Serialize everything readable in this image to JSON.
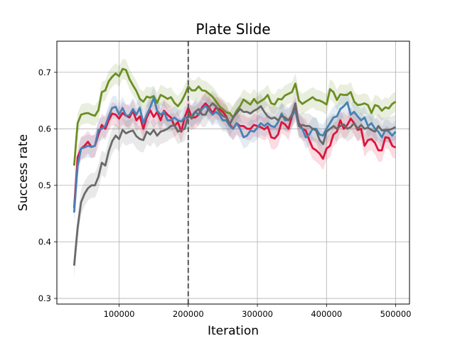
{
  "chart_data": {
    "type": "line",
    "title": "Plate Slide",
    "xlabel": "Iteration",
    "ylabel": "Success rate",
    "xlim": [
      10000,
      520000
    ],
    "ylim": [
      0.29,
      0.755
    ],
    "xticks": [
      100000,
      200000,
      300000,
      400000,
      500000
    ],
    "xtick_labels": [
      "100000",
      "200000",
      "300000",
      "400000",
      "500000"
    ],
    "yticks": [
      0.3,
      0.4,
      0.5,
      0.6,
      0.7
    ],
    "ytick_labels": [
      "0.3",
      "0.4",
      "0.5",
      "0.6",
      "0.7"
    ],
    "grid": true,
    "vline": {
      "x": 200000,
      "style": "dashed",
      "color": "#555555"
    },
    "x": [
      35000,
      40000,
      45000,
      50000,
      55000,
      60000,
      65000,
      70000,
      75000,
      80000,
      85000,
      90000,
      95000,
      100000,
      105000,
      110000,
      115000,
      120000,
      125000,
      130000,
      135000,
      140000,
      145000,
      150000,
      155000,
      160000,
      165000,
      170000,
      175000,
      180000,
      185000,
      190000,
      195000,
      200000,
      205000,
      210000,
      215000,
      220000,
      225000,
      230000,
      235000,
      240000,
      245000,
      250000,
      255000,
      260000,
      265000,
      270000,
      275000,
      280000,
      285000,
      290000,
      295000,
      300000,
      305000,
      310000,
      315000,
      320000,
      325000,
      330000,
      335000,
      340000,
      345000,
      350000,
      355000,
      360000,
      365000,
      370000,
      375000,
      380000,
      385000,
      390000,
      395000,
      400000,
      405000,
      410000,
      415000,
      420000,
      425000,
      430000,
      435000,
      440000,
      445000,
      450000,
      455000,
      460000,
      465000,
      470000,
      475000,
      480000,
      485000,
      490000,
      495000,
      500000
    ],
    "series": [
      {
        "color": "#6b8e23",
        "band": 0.018,
        "values": [
          0.535,
          0.61,
          0.625,
          0.627,
          0.628,
          0.625,
          0.623,
          0.633,
          0.665,
          0.668,
          0.684,
          0.692,
          0.698,
          0.693,
          0.706,
          0.704,
          0.688,
          0.677,
          0.667,
          0.653,
          0.648,
          0.657,
          0.655,
          0.658,
          0.646,
          0.66,
          0.657,
          0.653,
          0.656,
          0.646,
          0.64,
          0.648,
          0.66,
          0.675,
          0.668,
          0.668,
          0.675,
          0.668,
          0.667,
          0.662,
          0.657,
          0.649,
          0.64,
          0.635,
          0.629,
          0.628,
          0.62,
          0.632,
          0.64,
          0.652,
          0.647,
          0.643,
          0.653,
          0.645,
          0.649,
          0.653,
          0.66,
          0.645,
          0.643,
          0.653,
          0.652,
          0.659,
          0.662,
          0.665,
          0.68,
          0.65,
          0.644,
          0.648,
          0.652,
          0.656,
          0.651,
          0.65,
          0.647,
          0.643,
          0.67,
          0.665,
          0.651,
          0.661,
          0.66,
          0.66,
          0.665,
          0.648,
          0.642,
          0.643,
          0.645,
          0.642,
          0.628,
          0.642,
          0.64,
          0.632,
          0.638,
          0.636,
          0.644,
          0.648
        ]
      },
      {
        "color": "#dc143c",
        "band": 0.02,
        "values": [
          0.46,
          0.55,
          0.565,
          0.57,
          0.577,
          0.568,
          0.57,
          0.59,
          0.607,
          0.6,
          0.615,
          0.627,
          0.625,
          0.618,
          0.628,
          0.623,
          0.62,
          0.632,
          0.615,
          0.622,
          0.6,
          0.62,
          0.633,
          0.621,
          0.63,
          0.615,
          0.632,
          0.625,
          0.62,
          0.605,
          0.612,
          0.595,
          0.621,
          0.637,
          0.62,
          0.62,
          0.625,
          0.638,
          0.645,
          0.638,
          0.628,
          0.637,
          0.635,
          0.63,
          0.622,
          0.608,
          0.6,
          0.61,
          0.605,
          0.605,
          0.6,
          0.6,
          0.607,
          0.605,
          0.603,
          0.599,
          0.604,
          0.585,
          0.583,
          0.59,
          0.612,
          0.608,
          0.6,
          0.622,
          0.637,
          0.61,
          0.6,
          0.597,
          0.58,
          0.566,
          0.562,
          0.556,
          0.547,
          0.565,
          0.57,
          0.59,
          0.595,
          0.615,
          0.6,
          0.607,
          0.618,
          0.61,
          0.598,
          0.6,
          0.57,
          0.58,
          0.582,
          0.575,
          0.562,
          0.562,
          0.585,
          0.584,
          0.57,
          0.567
        ]
      },
      {
        "color": "#4682b4",
        "band": 0.02,
        "values": [
          0.452,
          0.535,
          0.565,
          0.567,
          0.57,
          0.568,
          0.57,
          0.598,
          0.6,
          0.605,
          0.622,
          0.637,
          0.639,
          0.625,
          0.637,
          0.623,
          0.624,
          0.635,
          0.625,
          0.637,
          0.61,
          0.625,
          0.638,
          0.655,
          0.632,
          0.625,
          0.63,
          0.615,
          0.615,
          0.62,
          0.615,
          0.613,
          0.62,
          0.62,
          0.623,
          0.63,
          0.625,
          0.635,
          0.641,
          0.633,
          0.625,
          0.63,
          0.625,
          0.615,
          0.615,
          0.605,
          0.6,
          0.61,
          0.6,
          0.585,
          0.588,
          0.597,
          0.595,
          0.602,
          0.61,
          0.605,
          0.61,
          0.605,
          0.603,
          0.612,
          0.627,
          0.615,
          0.616,
          0.623,
          0.632,
          0.605,
          0.6,
          0.585,
          0.59,
          0.6,
          0.6,
          0.59,
          0.588,
          0.6,
          0.61,
          0.62,
          0.622,
          0.635,
          0.64,
          0.647,
          0.625,
          0.63,
          0.622,
          0.615,
          0.62,
          0.605,
          0.61,
          0.6,
          0.595,
          0.585,
          0.598,
          0.595,
          0.588,
          0.595
        ]
      },
      {
        "color": "#696969",
        "band": 0.022,
        "values": [
          0.358,
          0.425,
          0.47,
          0.485,
          0.495,
          0.5,
          0.5,
          0.515,
          0.54,
          0.535,
          0.56,
          0.578,
          0.588,
          0.582,
          0.598,
          0.592,
          0.595,
          0.597,
          0.587,
          0.582,
          0.58,
          0.595,
          0.59,
          0.598,
          0.588,
          0.595,
          0.597,
          0.6,
          0.605,
          0.607,
          0.595,
          0.598,
          0.6,
          0.625,
          0.618,
          0.63,
          0.635,
          0.625,
          0.625,
          0.638,
          0.645,
          0.64,
          0.63,
          0.623,
          0.62,
          0.608,
          0.62,
          0.628,
          0.635,
          0.63,
          0.63,
          0.627,
          0.632,
          0.635,
          0.64,
          0.63,
          0.622,
          0.618,
          0.62,
          0.615,
          0.623,
          0.62,
          0.615,
          0.625,
          0.645,
          0.605,
          0.607,
          0.605,
          0.605,
          0.6,
          0.597,
          0.58,
          0.573,
          0.595,
          0.6,
          0.605,
          0.6,
          0.605,
          0.608,
          0.6,
          0.603,
          0.61,
          0.6,
          0.607,
          0.6,
          0.602,
          0.598,
          0.595,
          0.605,
          0.597,
          0.598,
          0.598,
          0.6,
          0.603
        ]
      }
    ]
  }
}
